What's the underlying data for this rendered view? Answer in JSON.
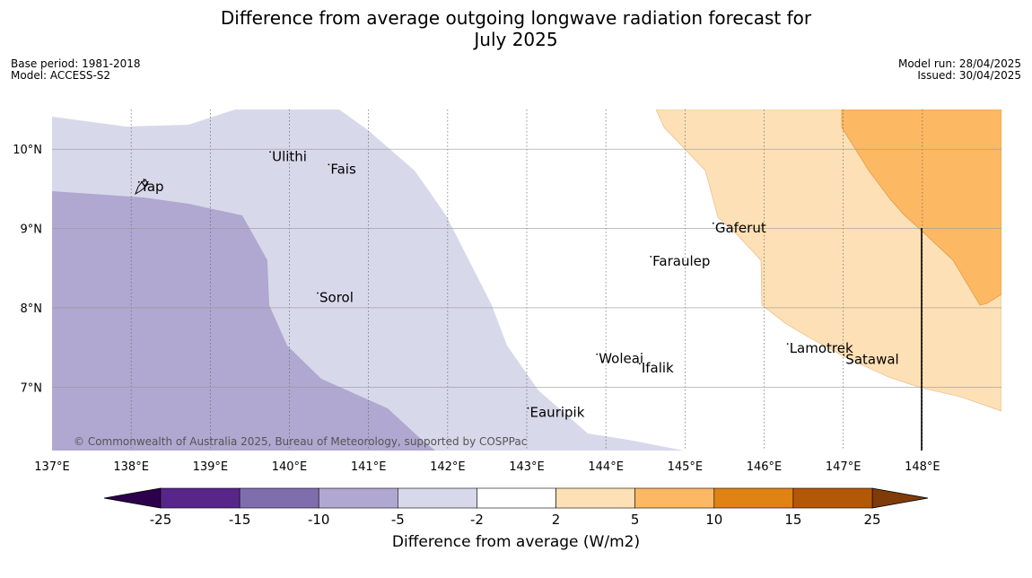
{
  "title_line1": "Difference from average outgoing longwave radiation forecast for",
  "title_line2": "July 2025",
  "meta_left": [
    "Base period: 1981-2018",
    "Model: ACCESS-S2"
  ],
  "meta_right": [
    "Model run: 28/04/2025",
    "Issued: 30/04/2025"
  ],
  "copyright": "© Commonwealth of Australia 2025, Bureau of Meteorology, supported by COSPPac",
  "map": {
    "lon_range": [
      137.0,
      149.0
    ],
    "lat_range": [
      6.2,
      10.5
    ],
    "lon_ticks": [
      137,
      138,
      139,
      140,
      141,
      142,
      143,
      144,
      145,
      146,
      147,
      148
    ],
    "lon_tick_labels": [
      "137°E",
      "138°E",
      "139°E",
      "140°E",
      "141°E",
      "142°E",
      "143°E",
      "144°E",
      "145°E",
      "146°E",
      "147°E",
      "148°E"
    ],
    "lat_ticks": [
      7,
      8,
      9,
      10
    ],
    "lat_tick_labels": [
      "7°N",
      "8°N",
      "9°N",
      "10°N"
    ],
    "places": [
      {
        "name": "Ulithi",
        "lon": 139.78,
        "lat": 9.92
      },
      {
        "name": "Fais",
        "lon": 140.52,
        "lat": 9.76
      },
      {
        "name": "Yap",
        "lon": 138.12,
        "lat": 9.54
      },
      {
        "name": "Gaferut",
        "lon": 145.38,
        "lat": 9.02
      },
      {
        "name": "Faraulep",
        "lon": 144.59,
        "lat": 8.6
      },
      {
        "name": "Sorol",
        "lon": 140.38,
        "lat": 8.14
      },
      {
        "name": "Woleai",
        "lon": 143.91,
        "lat": 7.37
      },
      {
        "name": "Ifalik",
        "lon": 144.45,
        "lat": 7.25
      },
      {
        "name": "Lamotrek",
        "lon": 146.32,
        "lat": 7.5
      },
      {
        "name": "Satawal",
        "lon": 147.03,
        "lat": 7.36
      },
      {
        "name": "Eauripik",
        "lon": 143.04,
        "lat": 6.69
      }
    ]
  },
  "colorbar": {
    "label": "Difference from average (W/m2)",
    "tick_labels": [
      "-25",
      "-15",
      "-10",
      "-5",
      "-2",
      "2",
      "5",
      "10",
      "15",
      "25"
    ],
    "colors": [
      "#582689",
      "#7f6ead",
      "#b0a8d0",
      "#d7d8ea",
      "#ffffff",
      "#fee0b6",
      "#fdb863",
      "#e08214",
      "#b35806"
    ],
    "under_color": "#2d004b",
    "over_color": "#7f3b08"
  }
}
